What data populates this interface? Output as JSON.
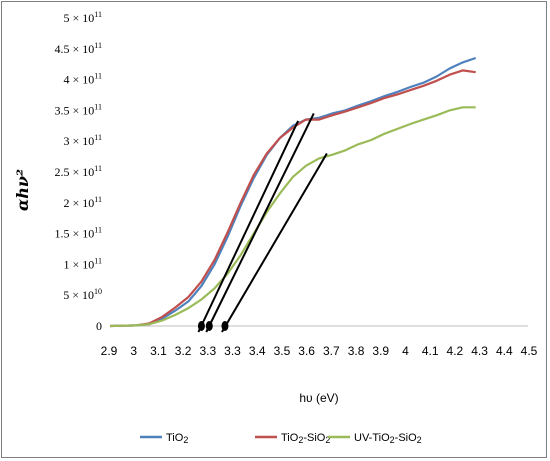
{
  "chart_data": {
    "type": "line",
    "xlabel": "hυ (eV)",
    "ylabel": "αhν²",
    "x_ticks": [
      "2.9",
      "3",
      "3.1",
      "3.2",
      "3.3",
      "3.3",
      "3.4",
      "3.5",
      "3.6",
      "3.7",
      "3.8",
      "3.9",
      "4",
      "4.1",
      "4.2",
      "4.3",
      "4.4",
      "4.5"
    ],
    "y_ticks": [
      {
        "value": 0,
        "mantissa": "0",
        "exp": ""
      },
      {
        "value": 50000000000.0,
        "mantissa": "5 × 10",
        "exp": "10"
      },
      {
        "value": 100000000000.0,
        "mantissa": "1 × 10",
        "exp": "11"
      },
      {
        "value": 150000000000.0,
        "mantissa": "1.5 × 10",
        "exp": "11"
      },
      {
        "value": 200000000000.0,
        "mantissa": "2 × 10",
        "exp": "11"
      },
      {
        "value": 250000000000.0,
        "mantissa": "2.5 × 10",
        "exp": "11"
      },
      {
        "value": 300000000000.0,
        "mantissa": "3 × 10",
        "exp": "11"
      },
      {
        "value": 350000000000.0,
        "mantissa": "3.5 × 10",
        "exp": "11"
      },
      {
        "value": 400000000000.0,
        "mantissa": "4 × 10",
        "exp": "11"
      },
      {
        "value": 450000000000.0,
        "mantissa": "4.5 × 10",
        "exp": "11"
      },
      {
        "value": 500000000000.0,
        "mantissa": "5 × 10",
        "exp": "11"
      }
    ],
    "ylim": [
      0,
      500000000000.0
    ],
    "grid": false,
    "legend_position": "bottom",
    "series": [
      {
        "name": "TiO2",
        "color": "#4f81bd",
        "points": [
          [
            2.9,
            0
          ],
          [
            3.0,
            1000000000.0
          ],
          [
            3.05,
            3000000000.0
          ],
          [
            3.1,
            12000000000.0
          ],
          [
            3.15,
            25000000000.0
          ],
          [
            3.2,
            40000000000.0
          ],
          [
            3.25,
            65000000000.0
          ],
          [
            3.3,
            100000000000.0
          ],
          [
            3.35,
            145000000000.0
          ],
          [
            3.4,
            195000000000.0
          ],
          [
            3.45,
            240000000000.0
          ],
          [
            3.5,
            278000000000.0
          ],
          [
            3.55,
            305000000000.0
          ],
          [
            3.6,
            325000000000.0
          ],
          [
            3.65,
            335000000000.0
          ],
          [
            3.7,
            338000000000.0
          ],
          [
            3.75,
            345000000000.0
          ],
          [
            3.8,
            350000000000.0
          ],
          [
            3.85,
            358000000000.0
          ],
          [
            3.9,
            365000000000.0
          ],
          [
            3.95,
            373000000000.0
          ],
          [
            4.0,
            380000000000.0
          ],
          [
            4.05,
            388000000000.0
          ],
          [
            4.1,
            395000000000.0
          ],
          [
            4.15,
            405000000000.0
          ],
          [
            4.2,
            418000000000.0
          ],
          [
            4.25,
            428000000000.0
          ],
          [
            4.3,
            435000000000.0
          ]
        ]
      },
      {
        "name": "TiO2-SiO2",
        "color": "#c0504d",
        "points": [
          [
            2.9,
            0
          ],
          [
            3.0,
            1000000000.0
          ],
          [
            3.05,
            4000000000.0
          ],
          [
            3.1,
            15000000000.0
          ],
          [
            3.15,
            30000000000.0
          ],
          [
            3.2,
            47000000000.0
          ],
          [
            3.25,
            72000000000.0
          ],
          [
            3.3,
            107000000000.0
          ],
          [
            3.35,
            152000000000.0
          ],
          [
            3.4,
            200000000000.0
          ],
          [
            3.45,
            245000000000.0
          ],
          [
            3.5,
            280000000000.0
          ],
          [
            3.55,
            305000000000.0
          ],
          [
            3.6,
            322000000000.0
          ],
          [
            3.65,
            335000000000.0
          ],
          [
            3.7,
            335000000000.0
          ],
          [
            3.75,
            342000000000.0
          ],
          [
            3.8,
            348000000000.0
          ],
          [
            3.85,
            355000000000.0
          ],
          [
            3.9,
            362000000000.0
          ],
          [
            3.95,
            370000000000.0
          ],
          [
            4.0,
            376000000000.0
          ],
          [
            4.05,
            383000000000.0
          ],
          [
            4.1,
            390000000000.0
          ],
          [
            4.15,
            398000000000.0
          ],
          [
            4.2,
            408000000000.0
          ],
          [
            4.25,
            415000000000.0
          ],
          [
            4.3,
            412000000000.0
          ]
        ]
      },
      {
        "name": "UV-TiO2-SiO2",
        "color": "#9bbb59",
        "points": [
          [
            2.9,
            0
          ],
          [
            3.0,
            1000000000.0
          ],
          [
            3.05,
            3000000000.0
          ],
          [
            3.1,
            9000000000.0
          ],
          [
            3.15,
            18000000000.0
          ],
          [
            3.2,
            29000000000.0
          ],
          [
            3.25,
            43000000000.0
          ],
          [
            3.3,
            61000000000.0
          ],
          [
            3.35,
            85000000000.0
          ],
          [
            3.4,
            115000000000.0
          ],
          [
            3.45,
            150000000000.0
          ],
          [
            3.5,
            185000000000.0
          ],
          [
            3.55,
            215000000000.0
          ],
          [
            3.6,
            242000000000.0
          ],
          [
            3.65,
            260000000000.0
          ],
          [
            3.7,
            272000000000.0
          ],
          [
            3.75,
            278000000000.0
          ],
          [
            3.8,
            285000000000.0
          ],
          [
            3.85,
            295000000000.0
          ],
          [
            3.9,
            302000000000.0
          ],
          [
            3.95,
            312000000000.0
          ],
          [
            4.0,
            320000000000.0
          ],
          [
            4.05,
            328000000000.0
          ],
          [
            4.1,
            335000000000.0
          ],
          [
            4.15,
            342000000000.0
          ],
          [
            4.2,
            350000000000.0
          ],
          [
            4.25,
            355000000000.0
          ],
          [
            4.3,
            355000000000.0
          ]
        ]
      }
    ],
    "tangent_lines": [
      {
        "from": [
          3.25,
          0
        ],
        "to": [
          3.62,
          333000000000.0
        ]
      },
      {
        "from": [
          3.28,
          0
        ],
        "to": [
          3.68,
          345000000000.0
        ]
      },
      {
        "from": [
          3.34,
          0
        ],
        "to": [
          3.73,
          280000000000.0
        ]
      }
    ],
    "legend": [
      {
        "label": "TiO",
        "sub": "2",
        "color": "#4f81bd"
      },
      {
        "label": "TiO",
        "sub": "2",
        "rest": "-SiO",
        "sub2": "2",
        "color": "#c0504d"
      },
      {
        "label": "UV-TiO",
        "sub": "2",
        "rest": "-SiO",
        "sub2": "2",
        "color": "#9bbb59"
      }
    ]
  }
}
